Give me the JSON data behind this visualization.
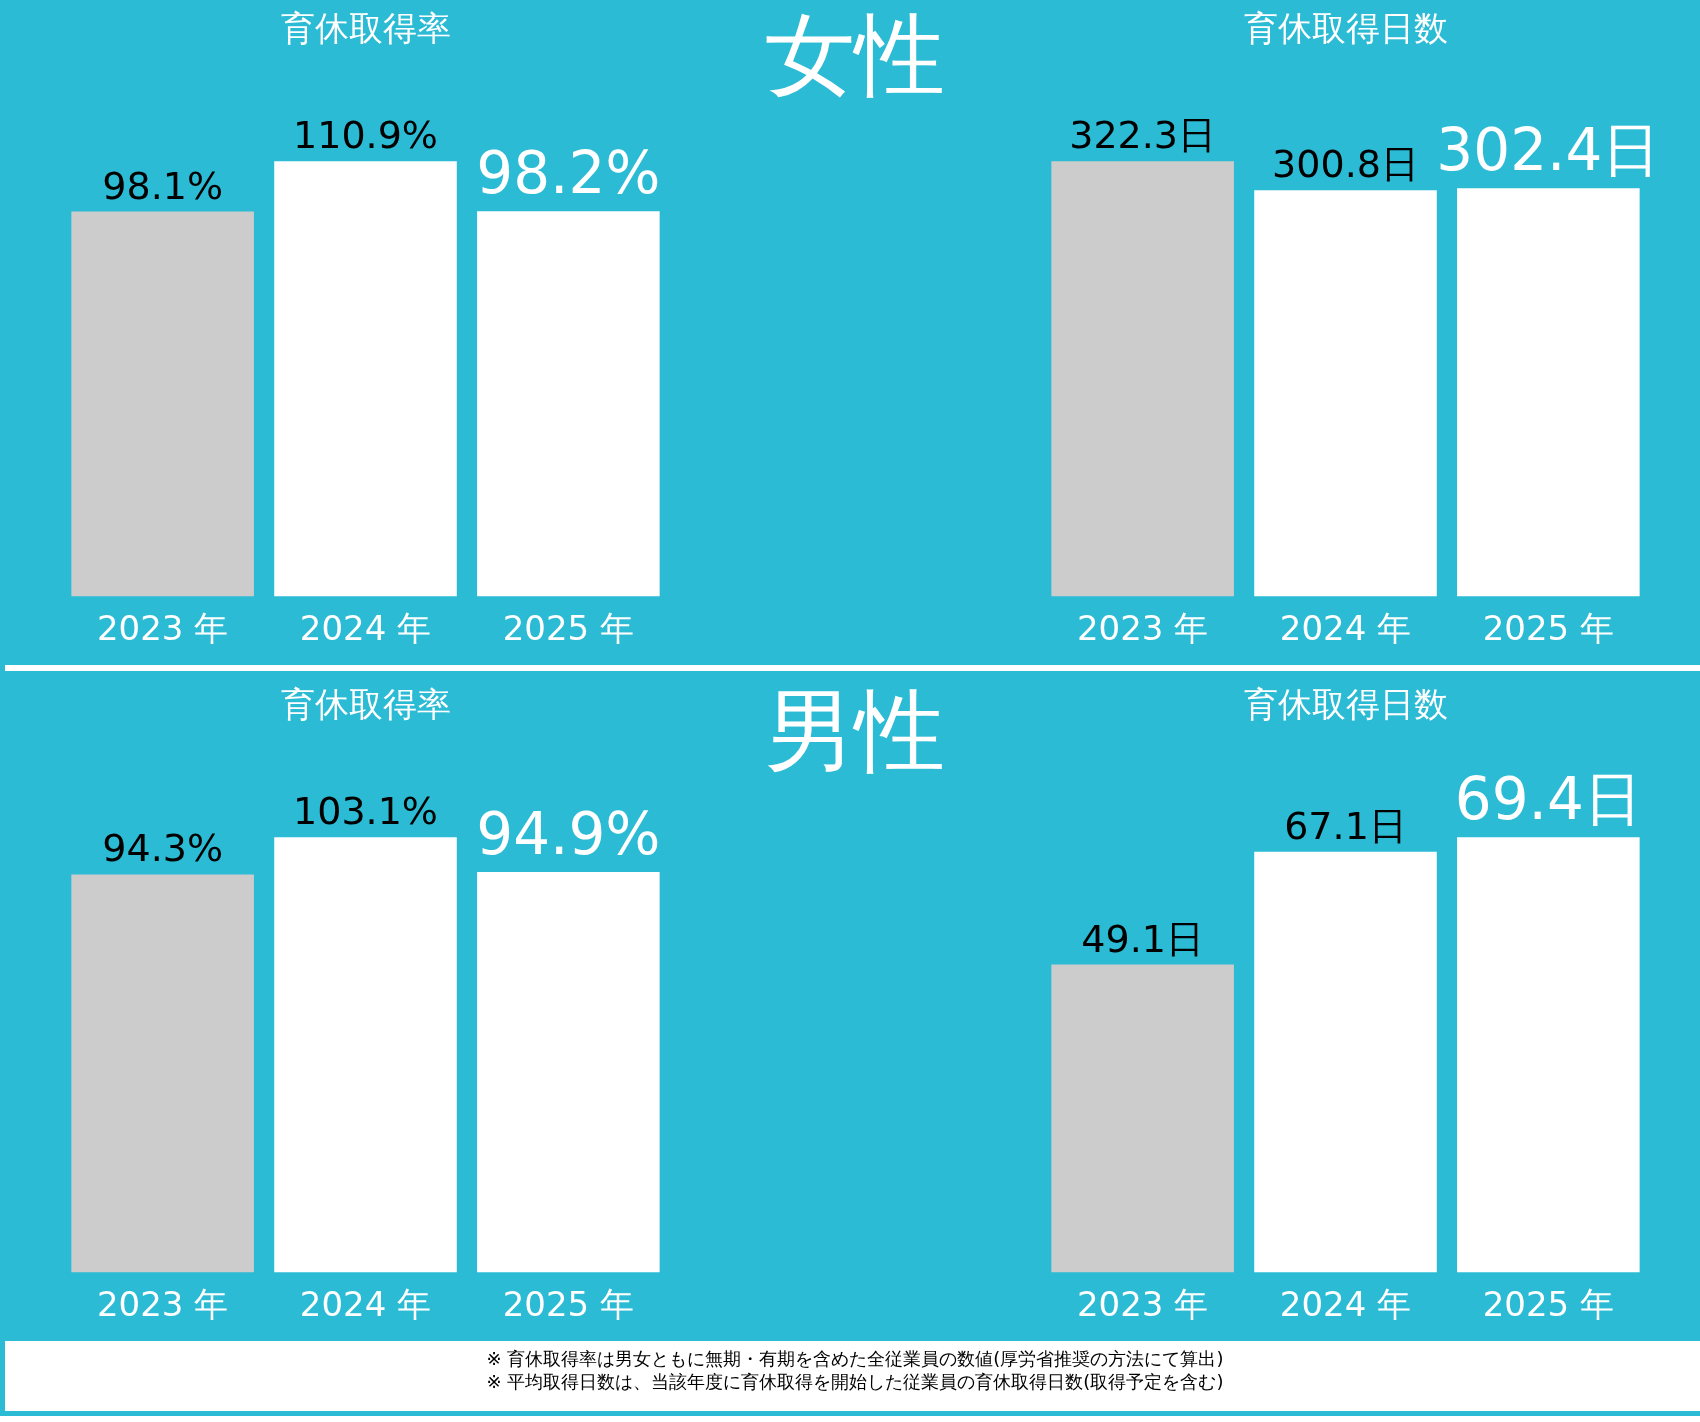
{
  "chart_data": [
    {
      "type": "bar",
      "title": "育休取得率",
      "annotations": [
        "女性"
      ],
      "categories": [
        "2023 年",
        "2024 年",
        "2025 年"
      ],
      "values": [
        98.1,
        110.9,
        98.2
      ],
      "value_labels": [
        "98.1%",
        "110.9%",
        "98.2%"
      ],
      "colors": [
        "#cccccc",
        "#ffffff",
        "#ffffff"
      ],
      "tick_labels": "x"
    },
    {
      "type": "bar",
      "title": "育休取得日数",
      "categories": [
        "2023 年",
        "2024 年",
        "2025 年"
      ],
      "values": [
        322.3,
        300.8,
        302.4
      ],
      "value_labels": [
        "322.3日",
        "300.8日",
        "302.4日"
      ],
      "colors": [
        "#cccccc",
        "#ffffff",
        "#ffffff"
      ],
      "tick_labels": "x"
    },
    {
      "type": "bar",
      "title": "育休取得率",
      "annotations": [
        "男性"
      ],
      "categories": [
        "2023 年",
        "2024 年",
        "2025 年"
      ],
      "values": [
        94.3,
        103.1,
        94.9
      ],
      "value_labels": [
        "94.3%",
        "103.1%",
        "94.9%"
      ],
      "colors": [
        "#cccccc",
        "#ffffff",
        "#ffffff"
      ],
      "tick_labels": "x"
    },
    {
      "type": "bar",
      "title": "育休取得日数",
      "annotations": [
        "※ 育休取得率は男女ともに無期・有期を含めた全従業員の数値(厚労省推奨の方法にて算出)",
        "※ 平均取得日数は、当該年度に育休取得を開始した従業員の育休取得日数(取得予定を含む)"
      ],
      "categories": [
        "2023 年",
        "2024 年",
        "2025 年"
      ],
      "values": [
        49.1,
        67.1,
        69.4
      ],
      "value_labels": [
        "49.1日",
        "67.1日",
        "69.4日"
      ],
      "colors": [
        "#cccccc",
        "#ffffff",
        "#ffffff"
      ],
      "tick_labels": "x"
    }
  ]
}
